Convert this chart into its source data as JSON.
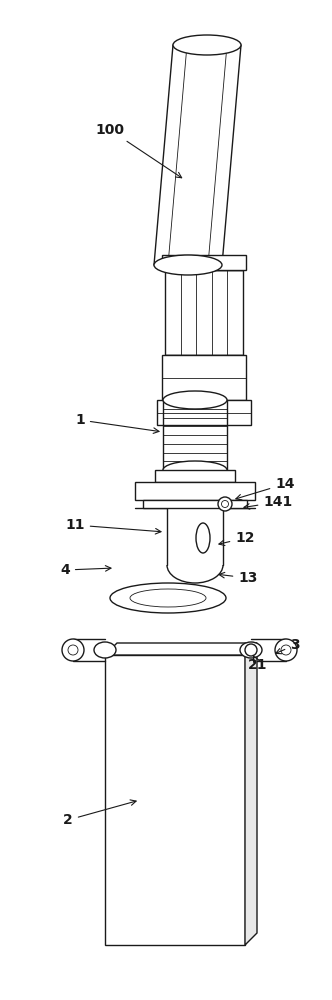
{
  "bg_color": "#ffffff",
  "line_color": "#1a1a1a",
  "lw": 1.0,
  "lw_thin": 0.6,
  "fig_width": 3.32,
  "fig_height": 10.0
}
